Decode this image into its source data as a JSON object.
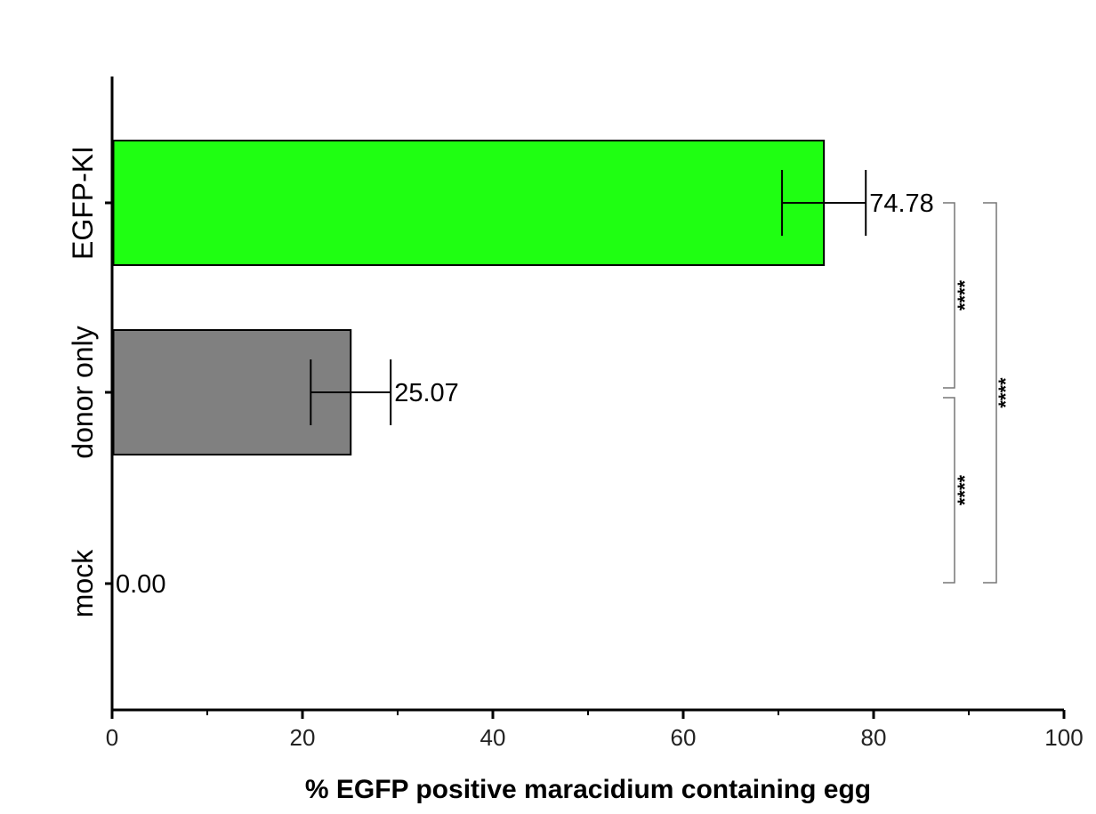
{
  "chart_data": {
    "type": "bar",
    "orientation": "horizontal",
    "categories": [
      "EGFP-KI",
      "donor only",
      "mock"
    ],
    "values": [
      74.78,
      25.07,
      0.0
    ],
    "value_labels": [
      "74.78",
      "25.07",
      "0.00"
    ],
    "error": [
      4.4,
      4.2,
      0
    ],
    "bar_colors": [
      "#1fff12",
      "#808080",
      "#ffffff"
    ],
    "xlabel": "% EGFP positive maracidium containing egg",
    "xlim": [
      0,
      100
    ],
    "x_ticks": [
      0,
      20,
      40,
      60,
      80,
      100
    ],
    "x_tick_labels": [
      "0",
      "20",
      "40",
      "60",
      "80",
      "100"
    ],
    "x_minor_ticks": [
      10,
      30,
      50,
      70,
      90
    ],
    "grid": false,
    "significance": [
      {
        "from": "EGFP-KI",
        "to": "donor only",
        "label": "****"
      },
      {
        "from": "donor only",
        "to": "mock",
        "label": "****"
      },
      {
        "from": "EGFP-KI",
        "to": "mock",
        "label": "****"
      }
    ]
  }
}
